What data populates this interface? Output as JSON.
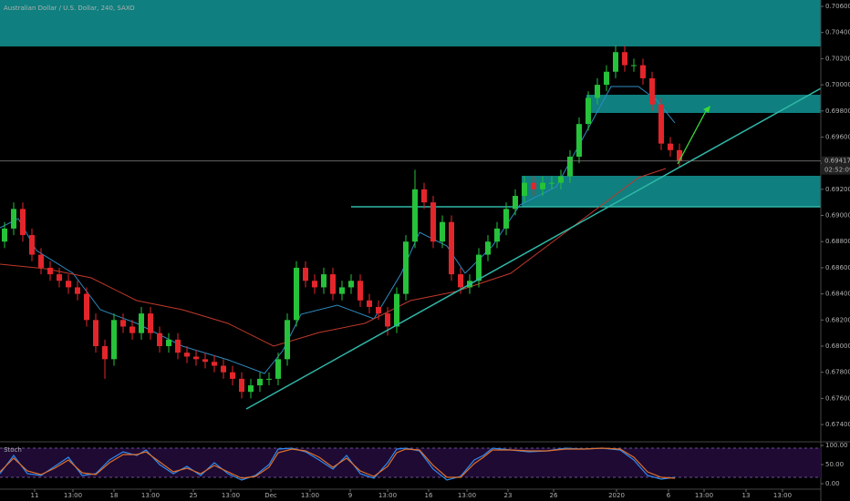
{
  "chart_data": {
    "type": "candlestick",
    "title": "Australian Dollar / U.S. Dollar, 240, SAXO",
    "colors": {
      "up": "#26c23a",
      "down": "#e3262b"
    },
    "ylim": [
      0.67275,
      0.70649
    ],
    "yticks": [
      {
        "value": 0.706,
        "label": "0.70600"
      },
      {
        "value": 0.704,
        "label": "0.70400"
      },
      {
        "value": 0.702,
        "label": "0.70200"
      },
      {
        "value": 0.7,
        "label": "0.70000"
      },
      {
        "value": 0.698,
        "label": "0.69800"
      },
      {
        "value": 0.696,
        "label": "0.69600"
      },
      {
        "value": 0.694,
        "label": "0.69400"
      },
      {
        "value": 0.692,
        "label": "0.69200"
      },
      {
        "value": 0.69,
        "label": "0.69000"
      },
      {
        "value": 0.688,
        "label": "0.68800"
      },
      {
        "value": 0.686,
        "label": "0.68600"
      },
      {
        "value": 0.684,
        "label": "0.68400"
      },
      {
        "value": 0.682,
        "label": "0.68200"
      },
      {
        "value": 0.68,
        "label": "0.68000"
      },
      {
        "value": 0.678,
        "label": "0.67800"
      },
      {
        "value": 0.676,
        "label": "0.67600"
      },
      {
        "value": 0.674,
        "label": "0.67400"
      }
    ],
    "xlim": [
      -0.5,
      89.5
    ],
    "xticks": [
      {
        "value": 3.3,
        "label": "11"
      },
      {
        "value": 7.5,
        "label": "13:00"
      },
      {
        "value": 12,
        "label": "18"
      },
      {
        "value": 16,
        "label": "13:00"
      },
      {
        "value": 20.7,
        "label": "25"
      },
      {
        "value": 24.8,
        "label": "13:00"
      },
      {
        "value": 29.2,
        "label": "Dec"
      },
      {
        "value": 33.5,
        "label": "13:00"
      },
      {
        "value": 37.9,
        "label": "9"
      },
      {
        "value": 42,
        "label": "13:00"
      },
      {
        "value": 46.5,
        "label": "16"
      },
      {
        "value": 50.7,
        "label": "13:00"
      },
      {
        "value": 55.2,
        "label": "23"
      },
      {
        "value": 60.2,
        "label": "26"
      },
      {
        "value": 67.1,
        "label": "2020"
      },
      {
        "value": 72.8,
        "label": "6"
      },
      {
        "value": 76.7,
        "label": "13:00"
      },
      {
        "value": 81.3,
        "label": "13"
      },
      {
        "value": 85.3,
        "label": "13:00"
      }
    ],
    "last_price": {
      "value": 0.69417,
      "label": "0.69417"
    },
    "countdown": "02:52:09",
    "open": [
      0.688,
      0.689,
      0.6905,
      0.6885,
      0.687,
      0.686,
      0.6855,
      0.685,
      0.6845,
      0.684,
      0.682,
      0.68,
      0.679,
      0.682,
      0.6815,
      0.681,
      0.6825,
      0.681,
      0.68,
      0.6805,
      0.6795,
      0.6792,
      0.679,
      0.6788,
      0.6785,
      0.678,
      0.6775,
      0.6765,
      0.677,
      0.6775,
      0.6775,
      0.679,
      0.682,
      0.686,
      0.685,
      0.6845,
      0.6855,
      0.684,
      0.6845,
      0.685,
      0.6835,
      0.683,
      0.6825,
      0.6815,
      0.684,
      0.688,
      0.692,
      0.691,
      0.688,
      0.6895,
      0.6855,
      0.6845,
      0.685,
      0.687,
      0.688,
      0.689,
      0.6905,
      0.6915,
      0.6925,
      0.692,
      0.6925,
      0.6925,
      0.693,
      0.6945,
      0.697,
      0.699,
      0.7,
      0.701,
      0.7025,
      0.7015,
      0.7015,
      0.7005,
      0.6985,
      0.6955,
      0.695
    ],
    "high": [
      0.6895,
      0.691,
      0.691,
      0.689,
      0.6875,
      0.6865,
      0.686,
      0.6855,
      0.685,
      0.6845,
      0.6825,
      0.6805,
      0.6825,
      0.6825,
      0.682,
      0.683,
      0.683,
      0.6815,
      0.681,
      0.681,
      0.68,
      0.6797,
      0.6795,
      0.6793,
      0.679,
      0.6785,
      0.678,
      0.6775,
      0.678,
      0.678,
      0.6795,
      0.6825,
      0.6865,
      0.6865,
      0.6855,
      0.686,
      0.686,
      0.685,
      0.6855,
      0.6855,
      0.684,
      0.6835,
      0.683,
      0.6845,
      0.6885,
      0.6935,
      0.6925,
      0.6915,
      0.69,
      0.69,
      0.686,
      0.6855,
      0.6875,
      0.6885,
      0.6895,
      0.691,
      0.692,
      0.693,
      0.693,
      0.693,
      0.693,
      0.6935,
      0.695,
      0.6975,
      0.6995,
      0.7005,
      0.7015,
      0.703,
      0.703,
      0.702,
      0.702,
      0.701,
      0.699,
      0.696,
      0.6955
    ],
    "low": [
      0.6875,
      0.6885,
      0.688,
      0.6865,
      0.6855,
      0.685,
      0.6845,
      0.684,
      0.6835,
      0.6815,
      0.6795,
      0.6775,
      0.6785,
      0.681,
      0.6805,
      0.6805,
      0.6805,
      0.6795,
      0.6795,
      0.679,
      0.6787,
      0.6785,
      0.6783,
      0.678,
      0.6775,
      0.677,
      0.676,
      0.676,
      0.6765,
      0.677,
      0.677,
      0.6785,
      0.6815,
      0.6845,
      0.684,
      0.684,
      0.6835,
      0.6835,
      0.684,
      0.683,
      0.6825,
      0.682,
      0.6808,
      0.681,
      0.6835,
      0.6875,
      0.6905,
      0.6875,
      0.6875,
      0.685,
      0.684,
      0.684,
      0.6845,
      0.6865,
      0.6875,
      0.6885,
      0.69,
      0.691,
      0.6915,
      0.6915,
      0.692,
      0.692,
      0.6925,
      0.694,
      0.6965,
      0.6985,
      0.6995,
      0.7005,
      0.701,
      0.701,
      0.7,
      0.698,
      0.695,
      0.6945,
      0.6937
    ],
    "close": [
      0.689,
      0.6905,
      0.6885,
      0.687,
      0.686,
      0.6855,
      0.685,
      0.6845,
      0.684,
      0.682,
      0.68,
      0.679,
      0.682,
      0.6815,
      0.681,
      0.6825,
      0.681,
      0.68,
      0.6805,
      0.6795,
      0.6792,
      0.679,
      0.6788,
      0.6785,
      0.678,
      0.6775,
      0.6765,
      0.677,
      0.6775,
      0.6775,
      0.679,
      0.682,
      0.686,
      0.685,
      0.6845,
      0.6855,
      0.684,
      0.6845,
      0.685,
      0.6835,
      0.683,
      0.6825,
      0.6815,
      0.684,
      0.688,
      0.692,
      0.691,
      0.688,
      0.6895,
      0.6855,
      0.6845,
      0.685,
      0.687,
      0.688,
      0.689,
      0.6905,
      0.6915,
      0.6925,
      0.692,
      0.6925,
      0.6925,
      0.693,
      0.6945,
      0.697,
      0.699,
      0.7,
      0.701,
      0.7025,
      0.7015,
      0.7015,
      0.7005,
      0.6985,
      0.6955,
      0.695,
      0.6942
    ],
    "stoch": {
      "title": "Stoch",
      "ylim": [
        -14.3,
        109.5
      ],
      "yticks": [
        {
          "value": 100,
          "label": "100.00"
        },
        {
          "value": 50,
          "label": "50.00"
        },
        {
          "value": 0,
          "label": "0.00"
        }
      ]
    }
  }
}
